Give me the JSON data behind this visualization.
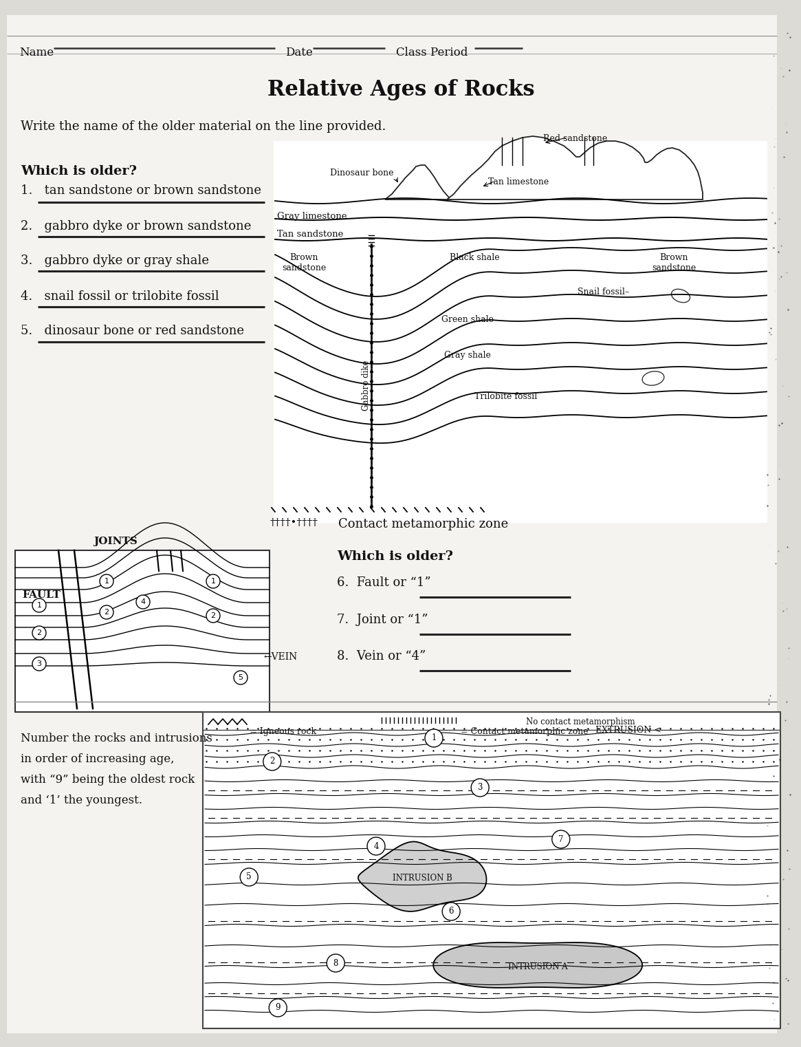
{
  "title": "Relative Ages of Rocks",
  "bg_color": "#e8e6e0",
  "instruction1": "Write the name of the older material on the line provided.",
  "which_older1": "Which is older?",
  "questions_left": [
    "1.   tan sandstone or brown sandstone",
    "2.   gabbro dyke or brown sandstone",
    "3.   gabbro dyke or gray shale",
    "4.   snail fossil or trilobite fossil",
    "5.   dinosaur bone or red sandstone"
  ],
  "which_older2": "Which is older?",
  "questions_right": [
    "6.  Fault or “1”",
    "7.  Joint or “1”",
    "8.  Vein or “4”"
  ],
  "contact_meta": "Contact metamorphic zone",
  "number_instruction_lines": [
    "Number the rocks and intrusions",
    "in order of increasing age,",
    "with “9” being the oldest rock",
    "and ‘1’ the youngest."
  ],
  "joints_label": "JOINTS",
  "fault_label": "FAULT",
  "vein_label": "VEIN",
  "legend_igneous": "= Igneous rock",
  "legend_contact": "= Contact metamorphic zone",
  "legend_no_contact": "No contact metamorphism",
  "intrusion_b": "INTRUSION B",
  "intrusion_a": "INTRUSION A",
  "extrusion": "EXTRUSION <"
}
